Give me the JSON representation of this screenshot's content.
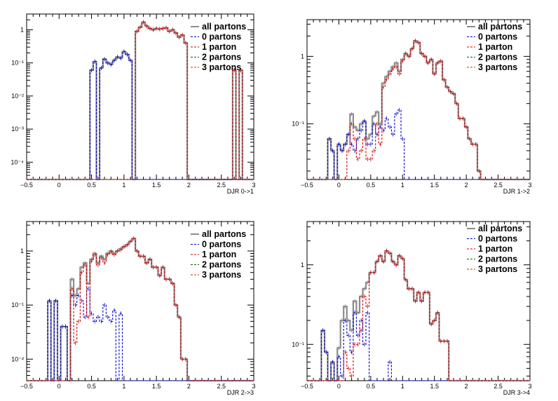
{
  "chart_data": [
    {
      "type": "line",
      "step": true,
      "xlabel": "DJR 0->1",
      "xlim": [
        -0.5,
        3.0
      ],
      "x_ticks": [
        -0.5,
        0,
        0.5,
        1,
        1.5,
        2,
        2.5,
        3
      ],
      "x_tick_labels": [
        "−0.5",
        "0",
        "0.5",
        "1",
        "1.5",
        "2",
        "2.5",
        "3"
      ],
      "y_scale": "log",
      "ylim": [
        3e-05,
        3
      ],
      "y_ticks": [
        0.0001,
        0.001,
        0.01,
        0.1,
        1
      ],
      "y_tick_labels": [
        "10⁻⁴",
        "10⁻³",
        "10⁻²",
        "10⁻¹",
        "1"
      ],
      "legend": [
        "all partons",
        "0 partons",
        "1 parton",
        "2 partons",
        "3 partons"
      ],
      "legend_position": "top-right",
      "bin_width": 0.05,
      "x": [
        0.45,
        0.5,
        0.55,
        0.6,
        0.65,
        0.7,
        0.75,
        0.8,
        0.85,
        0.9,
        0.95,
        1.0,
        1.05,
        1.1,
        1.15,
        1.2,
        1.25,
        1.3,
        1.35,
        1.4,
        1.45,
        1.5,
        1.55,
        1.6,
        1.65,
        1.7,
        1.75,
        1.8,
        1.85,
        1.9,
        1.95,
        2.0,
        2.05,
        2.7,
        2.75,
        2.8,
        2.85
      ],
      "series": [
        {
          "name": "all partons",
          "values": [
            3e-05,
            0.06,
            0.11,
            3e-05,
            0.07,
            0.13,
            0.1,
            0.09,
            0.12,
            0.15,
            0.14,
            0.22,
            0.18,
            0.12,
            3e-05,
            0.9,
            1.2,
            1.7,
            1.3,
            1.1,
            1.0,
            1.1,
            1.05,
            1.1,
            1.15,
            0.9,
            1.0,
            0.8,
            0.6,
            0.7,
            0.4,
            3e-05,
            3e-05,
            0.06,
            3e-05,
            0.06,
            3e-05
          ]
        },
        {
          "name": "0 partons",
          "values": [
            3e-05,
            0.06,
            0.11,
            3e-05,
            0.07,
            0.13,
            0.1,
            0.09,
            0.12,
            0.15,
            0.14,
            0.22,
            0.18,
            0.12,
            3e-05,
            3e-05,
            3e-05,
            3e-05,
            3e-05,
            3e-05,
            3e-05,
            3e-05,
            3e-05,
            3e-05,
            3e-05,
            3e-05,
            3e-05,
            3e-05,
            3e-05,
            3e-05,
            3e-05,
            3e-05,
            3e-05,
            3e-05,
            3e-05,
            3e-05,
            3e-05
          ]
        },
        {
          "name": "1 parton",
          "values": [
            3e-05,
            3e-05,
            3e-05,
            3e-05,
            3e-05,
            3e-05,
            3e-05,
            3e-05,
            3e-05,
            3e-05,
            3e-05,
            3e-05,
            3e-05,
            3e-05,
            3e-05,
            0.9,
            1.2,
            1.7,
            1.3,
            1.1,
            1.0,
            1.1,
            1.05,
            1.1,
            1.15,
            0.9,
            1.0,
            0.8,
            0.6,
            0.7,
            0.4,
            3e-05,
            3e-05,
            0.06,
            3e-05,
            0.06,
            3e-05
          ]
        }
      ]
    },
    {
      "type": "line",
      "step": true,
      "xlabel": "DJR 1->2",
      "xlim": [
        -0.5,
        3.0
      ],
      "x_ticks": [
        -0.5,
        0,
        0.5,
        1,
        1.5,
        2,
        2.5,
        3
      ],
      "x_tick_labels": [
        "−0.5",
        "0",
        "0.5",
        "1",
        "1.5",
        "2",
        "2.5",
        "3"
      ],
      "y_scale": "log",
      "ylim": [
        0.015,
        3.5
      ],
      "y_ticks": [
        0.1,
        1
      ],
      "y_tick_labels": [
        "10⁻¹",
        "1"
      ],
      "legend": [
        "all partons",
        "0 partons",
        "1 parton",
        "2 partons",
        "3 partons"
      ],
      "legend_position": "top-right",
      "bin_width": 0.05,
      "x": [
        -0.2,
        -0.15,
        -0.1,
        -0.05,
        0.0,
        0.05,
        0.1,
        0.15,
        0.2,
        0.25,
        0.3,
        0.35,
        0.4,
        0.45,
        0.5,
        0.55,
        0.6,
        0.65,
        0.7,
        0.75,
        0.8,
        0.85,
        0.9,
        0.95,
        1.0,
        1.05,
        1.1,
        1.15,
        1.2,
        1.25,
        1.3,
        1.35,
        1.4,
        1.45,
        1.5,
        1.55,
        1.6,
        1.65,
        1.7,
        1.75,
        1.8,
        1.85,
        1.9,
        1.95,
        2.0,
        2.05,
        2.1,
        2.15,
        2.2,
        2.25
      ],
      "series": [
        {
          "name": "all partons",
          "values": [
            0.015,
            0.06,
            0.04,
            0.015,
            0.05,
            0.04,
            0.05,
            0.07,
            0.14,
            0.09,
            0.08,
            0.1,
            0.11,
            0.06,
            0.07,
            0.13,
            0.15,
            0.1,
            0.4,
            0.5,
            0.6,
            0.7,
            0.8,
            0.6,
            0.9,
            1.1,
            1.0,
            1.3,
            1.7,
            1.6,
            1.1,
            1.0,
            0.8,
            0.9,
            0.55,
            0.8,
            0.85,
            0.45,
            0.35,
            0.3,
            0.28,
            0.2,
            0.12,
            0.12,
            0.09,
            0.06,
            0.05,
            0.05,
            0.02,
            0.015
          ]
        },
        {
          "name": "0 partons",
          "values": [
            0.015,
            0.06,
            0.04,
            0.015,
            0.05,
            0.04,
            0.05,
            0.07,
            0.05,
            0.04,
            0.06,
            0.08,
            0.11,
            0.05,
            0.05,
            0.1,
            0.07,
            0.09,
            0.08,
            0.12,
            0.09,
            0.07,
            0.14,
            0.16,
            0.06,
            0.015,
            0.015,
            0.015,
            0.015,
            0.015,
            0.015,
            0.015,
            0.015,
            0.015,
            0.015,
            0.015,
            0.015,
            0.015,
            0.015,
            0.015,
            0.015,
            0.015,
            0.015,
            0.015,
            0.015,
            0.015,
            0.015,
            0.015,
            0.015,
            0.015
          ]
        },
        {
          "name": "1 parton",
          "values": [
            0.015,
            0.015,
            0.015,
            0.015,
            0.015,
            0.015,
            0.015,
            0.04,
            0.1,
            0.06,
            0.03,
            0.04,
            0.06,
            0.03,
            0.03,
            0.04,
            0.1,
            0.05,
            0.35,
            0.45,
            0.55,
            0.65,
            0.7,
            0.55,
            0.85,
            1.1,
            1.0,
            1.3,
            1.7,
            1.6,
            1.1,
            1.0,
            0.8,
            0.9,
            0.55,
            0.8,
            0.85,
            0.45,
            0.35,
            0.3,
            0.28,
            0.2,
            0.12,
            0.12,
            0.09,
            0.06,
            0.05,
            0.05,
            0.02,
            0.015
          ]
        }
      ]
    },
    {
      "type": "line",
      "step": true,
      "xlabel": "DJR 2->3",
      "xlim": [
        -0.5,
        3.0
      ],
      "x_ticks": [
        -0.5,
        0,
        0.5,
        1,
        1.5,
        2,
        2.5,
        3
      ],
      "x_tick_labels": [
        "−0.5",
        "0",
        "0.5",
        "1",
        "1.5",
        "2",
        "2.5",
        "3"
      ],
      "y_scale": "log",
      "ylim": [
        0.004,
        3.5
      ],
      "y_ticks": [
        0.01,
        0.1,
        1
      ],
      "y_tick_labels": [
        "10⁻²",
        "10⁻¹",
        "1"
      ],
      "legend": [
        "all partons",
        "0 partons",
        "1 parton",
        "2 partons",
        "3 partons"
      ],
      "legend_position": "top-right",
      "bin_width": 0.05,
      "x": [
        -0.2,
        -0.15,
        -0.1,
        -0.05,
        0.0,
        0.05,
        0.1,
        0.15,
        0.2,
        0.25,
        0.3,
        0.35,
        0.4,
        0.45,
        0.5,
        0.55,
        0.6,
        0.65,
        0.7,
        0.75,
        0.8,
        0.85,
        0.9,
        0.95,
        1.0,
        1.05,
        1.1,
        1.15,
        1.2,
        1.25,
        1.3,
        1.35,
        1.4,
        1.45,
        1.5,
        1.55,
        1.6,
        1.65,
        1.7,
        1.75,
        1.8,
        1.85,
        1.9,
        1.95,
        2.0
      ],
      "series": [
        {
          "name": "all partons",
          "values": [
            0.004,
            0.12,
            0.004,
            0.12,
            0.004,
            0.04,
            0.04,
            0.004,
            0.3,
            0.15,
            0.2,
            0.5,
            0.6,
            0.25,
            0.7,
            0.9,
            0.6,
            0.8,
            0.7,
            0.9,
            1.0,
            0.9,
            1.0,
            1.1,
            1.2,
            1.3,
            1.5,
            1.7,
            1.0,
            0.8,
            0.8,
            0.6,
            0.7,
            0.5,
            0.5,
            0.35,
            0.5,
            0.3,
            0.3,
            0.25,
            0.1,
            0.06,
            0.01,
            0.01,
            0.004
          ]
        },
        {
          "name": "0 partons",
          "values": [
            0.004,
            0.12,
            0.004,
            0.12,
            0.004,
            0.04,
            0.04,
            0.004,
            0.15,
            0.1,
            0.15,
            0.12,
            0.06,
            0.2,
            0.07,
            0.05,
            0.06,
            0.05,
            0.1,
            0.06,
            0.05,
            0.08,
            0.004,
            0.07,
            0.004,
            0.004,
            0.004,
            0.004,
            0.004,
            0.004,
            0.004,
            0.004,
            0.004,
            0.004,
            0.004,
            0.004,
            0.004,
            0.004,
            0.004,
            0.004,
            0.004,
            0.004,
            0.004,
            0.004,
            0.004
          ]
        },
        {
          "name": "1 parton",
          "values": [
            0.004,
            0.004,
            0.004,
            0.004,
            0.004,
            0.004,
            0.004,
            0.004,
            0.2,
            0.02,
            0.05,
            0.4,
            0.55,
            0.06,
            0.65,
            0.85,
            0.55,
            0.75,
            0.6,
            0.85,
            0.95,
            0.85,
            1.0,
            1.05,
            1.2,
            1.3,
            1.5,
            1.7,
            1.0,
            0.8,
            0.8,
            0.6,
            0.7,
            0.5,
            0.5,
            0.35,
            0.5,
            0.3,
            0.3,
            0.25,
            0.1,
            0.06,
            0.01,
            0.01,
            0.004
          ]
        }
      ]
    },
    {
      "type": "line",
      "step": true,
      "xlabel": "DJR 3->4",
      "xlim": [
        -0.5,
        3.0
      ],
      "x_ticks": [
        -0.5,
        0,
        0.5,
        1,
        1.5,
        2,
        2.5,
        3
      ],
      "x_tick_labels": [
        "−0.5",
        "0",
        "0.5",
        "1",
        "1.5",
        "2",
        "2.5",
        "3"
      ],
      "y_scale": "log",
      "ylim": [
        0.035,
        3.5
      ],
      "y_ticks": [
        0.1,
        1
      ],
      "y_tick_labels": [
        "10⁻¹",
        "1"
      ],
      "legend": [
        "all partons",
        "0 partons",
        "1 parton",
        "2 partons",
        "3 partons"
      ],
      "legend_position": "top-right",
      "bin_width": 0.05,
      "x": [
        -0.3,
        -0.25,
        -0.2,
        -0.15,
        -0.1,
        -0.05,
        0.0,
        0.05,
        0.1,
        0.15,
        0.2,
        0.25,
        0.3,
        0.35,
        0.4,
        0.45,
        0.5,
        0.55,
        0.6,
        0.65,
        0.7,
        0.75,
        0.8,
        0.85,
        0.9,
        0.95,
        1.0,
        1.05,
        1.1,
        1.15,
        1.2,
        1.25,
        1.3,
        1.35,
        1.4,
        1.45,
        1.5,
        1.55,
        1.6,
        1.65,
        1.7,
        1.75
      ],
      "series": [
        {
          "name": "all partons",
          "values": [
            0.035,
            0.15,
            0.08,
            0.035,
            0.06,
            0.035,
            0.09,
            0.2,
            0.3,
            0.2,
            0.15,
            0.35,
            0.25,
            0.4,
            0.5,
            0.6,
            0.8,
            0.8,
            1.1,
            1.3,
            1.1,
            1.5,
            1.4,
            1.1,
            1.0,
            1.3,
            1.2,
            0.65,
            0.5,
            0.5,
            0.35,
            0.45,
            0.35,
            0.45,
            0.45,
            0.18,
            0.2,
            0.25,
            0.11,
            0.11,
            0.11,
            0.035
          ]
        },
        {
          "name": "0 partons",
          "values": [
            0.035,
            0.15,
            0.08,
            0.035,
            0.06,
            0.035,
            0.07,
            0.04,
            0.2,
            0.13,
            0.08,
            0.25,
            0.13,
            0.2,
            0.1,
            0.25,
            0.035,
            0.035,
            0.035,
            0.035,
            0.035,
            0.035,
            0.06,
            0.035,
            0.035,
            0.035,
            0.035,
            0.035,
            0.035,
            0.035,
            0.035,
            0.035,
            0.035,
            0.035,
            0.035,
            0.035,
            0.035,
            0.035,
            0.035,
            0.035,
            0.035,
            0.035
          ]
        },
        {
          "name": "1 parton",
          "values": [
            0.035,
            0.035,
            0.035,
            0.035,
            0.035,
            0.035,
            0.035,
            0.035,
            0.08,
            0.05,
            0.04,
            0.1,
            0.1,
            0.15,
            0.4,
            0.3,
            0.8,
            0.8,
            1.1,
            1.3,
            1.1,
            1.5,
            1.4,
            1.1,
            1.0,
            1.3,
            1.2,
            0.65,
            0.5,
            0.5,
            0.35,
            0.45,
            0.35,
            0.45,
            0.45,
            0.18,
            0.2,
            0.25,
            0.11,
            0.11,
            0.11,
            0.035
          ]
        }
      ]
    }
  ],
  "colors": {
    "all partons": "#8c8c8c",
    "0 partons": "#0000cc",
    "1 parton": "#cc0000",
    "2 partons": "#006600",
    "3 partons": "#cc3300",
    "axis": "#000000",
    "background": "#ffffff"
  }
}
